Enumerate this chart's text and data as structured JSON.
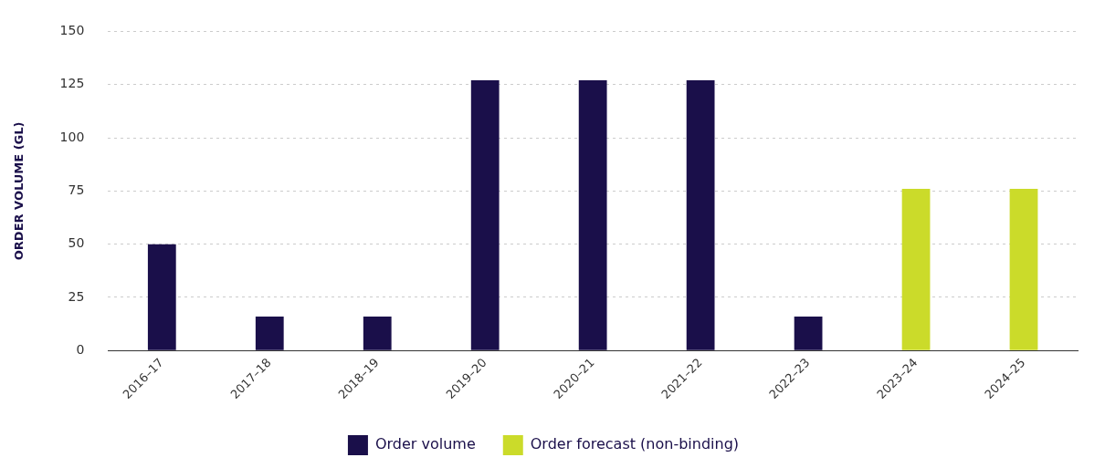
{
  "chart_data": {
    "type": "bar",
    "ylabel": "ORDER VOLUME (GL)",
    "categories": [
      "2016–17",
      "2017–18",
      "2018–19",
      "2019–20",
      "2020–21",
      "2021–22",
      "2022–23",
      "2023–24",
      "2024–25"
    ],
    "series": [
      {
        "name": "Order volume",
        "color": "#1a0f4a",
        "values": [
          50,
          16,
          16,
          127,
          127,
          127,
          16,
          null,
          null
        ]
      },
      {
        "name": "Order forecast (non-binding)",
        "color": "#cbdb2a",
        "values": [
          null,
          null,
          null,
          null,
          null,
          null,
          null,
          76,
          76
        ]
      }
    ],
    "ylim": [
      0,
      150
    ],
    "yticks": [
      0,
      25,
      50,
      75,
      100,
      125,
      150
    ],
    "grid": "y",
    "legend": "bottom"
  }
}
